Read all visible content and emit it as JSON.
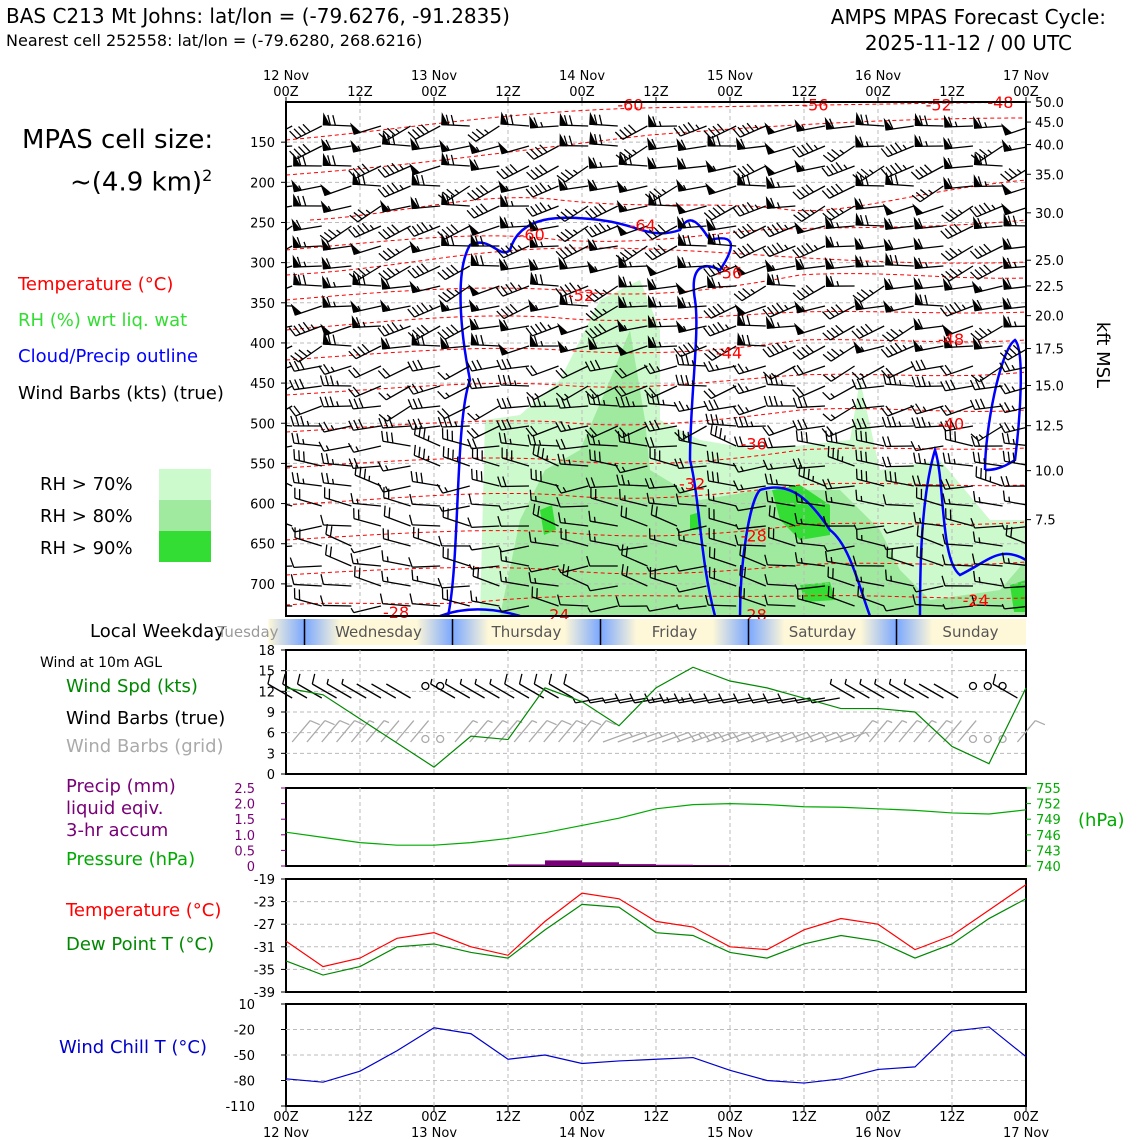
{
  "header": {
    "title": "BAS C213 Mt Johns: lat/lon = (-79.6276, -91.2835)",
    "subtitle": "Nearest cell 252558: lat/lon = (-79.6280, 268.6216)",
    "cycle_title": "AMPS MPAS Forecast Cycle:",
    "cycle_time": "2025-11-12 / 00 UTC"
  },
  "left_panel": {
    "cell_size_label": "MPAS cell size:",
    "cell_size_value": "~(4.9 km)",
    "cell_size_exp": "2",
    "legend": {
      "temperature": "Temperature (°C)",
      "rh": "RH (%) wrt liq. wat",
      "cloud": "Cloud/Precip outline",
      "wind": "Wind Barbs (kts) (true)"
    },
    "rh_levels": [
      "RH > 70%",
      "RH > 80%",
      "RH > 90%"
    ],
    "local_weekday": "Local Weekday",
    "wind_10m": "Wind at 10m AGL",
    "wind_spd": "Wind Spd (kts)",
    "wind_barbs_true": "Wind Barbs (true)",
    "wind_barbs_grid": "Wind Barbs (grid)",
    "precip_1": "Precip (mm)",
    "precip_2": "liquid eqiv.",
    "precip_3": "3-hr accum",
    "pressure": "Pressure (hPa)",
    "temperature": "Temperature (°C)",
    "dewpoint": "Dew Point T (°C)",
    "windchill": "Wind Chill T (°C)"
  },
  "colors": {
    "temp": "#ff0000",
    "rh": "#33dd33",
    "cloud": "#0000ff",
    "wind": "#000000",
    "rh70": "#ccfacc",
    "rh80": "#a0eaa0",
    "rh90": "#33dd33",
    "precip": "#770077",
    "pressure": "#00aa00",
    "dew": "#008800",
    "grid_barb": "#aaaaaa",
    "windchill": "#0000cc"
  },
  "time_axis": {
    "top_labels": [
      {
        "l1": "12 Nov",
        "l2": "00Z"
      },
      {
        "l1": "",
        "l2": "12Z"
      },
      {
        "l1": "13 Nov",
        "l2": "00Z"
      },
      {
        "l1": "",
        "l2": "12Z"
      },
      {
        "l1": "14 Nov",
        "l2": "00Z"
      },
      {
        "l1": "",
        "l2": "12Z"
      },
      {
        "l1": "15 Nov",
        "l2": "00Z"
      },
      {
        "l1": "",
        "l2": "12Z"
      },
      {
        "l1": "16 Nov",
        "l2": "00Z"
      },
      {
        "l1": "",
        "l2": "12Z"
      },
      {
        "l1": "17 Nov",
        "l2": "00Z"
      }
    ],
    "bottom_labels": [
      {
        "l1": "00Z",
        "l2": "12 Nov"
      },
      {
        "l1": "12Z",
        "l2": ""
      },
      {
        "l1": "00Z",
        "l2": "13 Nov"
      },
      {
        "l1": "12Z",
        "l2": ""
      },
      {
        "l1": "00Z",
        "l2": "14 Nov"
      },
      {
        "l1": "12Z",
        "l2": ""
      },
      {
        "l1": "00Z",
        "l2": "15 Nov"
      },
      {
        "l1": "12Z",
        "l2": ""
      },
      {
        "l1": "00Z",
        "l2": "16 Nov"
      },
      {
        "l1": "12Z",
        "l2": ""
      },
      {
        "l1": "00Z",
        "l2": "17 Nov"
      }
    ],
    "weekdays": [
      "Tuesday",
      "Wednesday",
      "Thursday",
      "Friday",
      "Saturday",
      "Sunday"
    ]
  },
  "chart_data": [
    {
      "type": "heatmap",
      "name": "cross-section",
      "yticks": [
        150,
        200,
        250,
        300,
        350,
        400,
        450,
        500,
        550,
        600,
        650,
        700
      ],
      "ylim": [
        740,
        100
      ],
      "right_label": "kft MSL",
      "right_ticks": [
        {
          "p": 100,
          "label": "50.0"
        },
        {
          "p": 125,
          "label": "45.0"
        },
        {
          "p": 153,
          "label": "40.0"
        },
        {
          "p": 190,
          "label": "35.0"
        },
        {
          "p": 238,
          "label": "30.0"
        },
        {
          "p": 297,
          "label": "25.0"
        },
        {
          "p": 329,
          "label": "22.5"
        },
        {
          "p": 366,
          "label": "20.0"
        },
        {
          "p": 407,
          "label": "17.5"
        },
        {
          "p": 453,
          "label": "15.0"
        },
        {
          "p": 503,
          "label": "12.5"
        },
        {
          "p": 559,
          "label": "10.0"
        },
        {
          "p": 620,
          "label": "7.5"
        }
      ],
      "temp_labels": [
        {
          "t": 28,
          "p": 103,
          "label": "-60"
        },
        {
          "t": 43,
          "p": 103,
          "label": "-56"
        },
        {
          "t": 53,
          "p": 103,
          "label": "-52"
        },
        {
          "t": 58,
          "p": 100,
          "label": "-48"
        },
        {
          "t": 20,
          "p": 265,
          "label": "-60"
        },
        {
          "t": 29,
          "p": 253,
          "label": "-64"
        },
        {
          "t": 36,
          "p": 312,
          "label": "-56"
        },
        {
          "t": 24,
          "p": 340,
          "label": "-52"
        },
        {
          "t": 36,
          "p": 412,
          "label": "-44"
        },
        {
          "t": 54,
          "p": 395,
          "label": "-48"
        },
        {
          "t": 54,
          "p": 500,
          "label": "-40"
        },
        {
          "t": 38,
          "p": 525,
          "label": "-36"
        },
        {
          "t": 33,
          "p": 575,
          "label": "-32"
        },
        {
          "t": 38,
          "p": 640,
          "label": "-28"
        },
        {
          "t": 9,
          "p": 735,
          "label": "-28"
        },
        {
          "t": 22,
          "p": 745,
          "label": "-24"
        },
        {
          "t": 38,
          "p": 750,
          "label": "-28"
        },
        {
          "t": 56,
          "p": 720,
          "label": "-24"
        }
      ]
    },
    {
      "type": "line",
      "name": "wind-speed",
      "ylim": [
        0,
        18
      ],
      "yticks": [
        0,
        3,
        6,
        9,
        12,
        15,
        18
      ],
      "x": [
        0,
        3,
        6,
        9,
        12,
        15,
        18,
        21,
        24,
        27,
        30,
        33,
        36,
        39,
        42,
        45,
        48,
        51,
        54,
        57,
        60
      ],
      "series": [
        {
          "values": [
            12.5,
            11.5,
            8,
            4.5,
            1,
            5.5,
            5,
            12.5,
            10.5,
            7,
            12.5,
            15.5,
            13.5,
            12.5,
            11,
            9.5,
            9.5,
            9,
            4,
            1.5,
            12.5
          ]
        }
      ]
    },
    {
      "type": "line",
      "name": "precip-pressure",
      "precip_ylim": [
        0,
        2.5
      ],
      "precip_yticks": [
        "0",
        "0.5",
        "1.0",
        "1.5",
        "2.0",
        "2.5"
      ],
      "pressure_ylim": [
        740,
        755
      ],
      "pressure_yticks": [
        740,
        743,
        746,
        749,
        752,
        755
      ],
      "right_label": "(hPa)",
      "x": [
        0,
        3,
        6,
        9,
        12,
        15,
        18,
        21,
        24,
        27,
        30,
        33,
        36,
        39,
        42,
        45,
        48,
        51,
        54,
        57,
        60
      ],
      "series": [
        {
          "name": "Pressure (hPa)",
          "values": [
            746.5,
            745.5,
            744.5,
            744,
            744,
            744.5,
            745.3,
            746.4,
            747.8,
            749.2,
            751,
            751.8,
            752,
            751.8,
            751.4,
            751.3,
            751,
            750.7,
            750.2,
            750,
            750.8
          ]
        },
        {
          "name": "Precip (mm)",
          "type": "bar",
          "values": [
            0,
            0,
            0,
            0,
            0,
            0,
            0.05,
            0.18,
            0.12,
            0.06,
            0.04,
            0.02,
            0,
            0,
            0,
            0,
            0,
            0,
            0,
            0,
            0
          ]
        }
      ]
    },
    {
      "type": "line",
      "name": "temperature-dewpoint",
      "ylim": [
        -39,
        -19
      ],
      "yticks": [
        -39,
        -35,
        -31,
        -27,
        -23,
        -19
      ],
      "x": [
        0,
        3,
        6,
        9,
        12,
        15,
        18,
        21,
        24,
        27,
        30,
        33,
        36,
        39,
        42,
        45,
        48,
        51,
        54,
        57,
        60
      ],
      "series": [
        {
          "name": "Temperature (°C)",
          "values": [
            -30,
            -34.5,
            -33,
            -29.5,
            -28.5,
            -31,
            -32.5,
            -26.5,
            -21.5,
            -22.5,
            -26.5,
            -27.5,
            -31,
            -31.5,
            -28,
            -26,
            -27,
            -31.5,
            -29,
            -24.5,
            -20
          ]
        },
        {
          "name": "Dew Point T (°C)",
          "values": [
            -33.5,
            -36,
            -34.5,
            -31,
            -30.5,
            -32,
            -33,
            -28,
            -23.5,
            -24,
            -28.5,
            -29,
            -32,
            -33,
            -30.5,
            -29,
            -30,
            -33,
            -30.5,
            -26,
            -22.5
          ]
        }
      ]
    },
    {
      "type": "line",
      "name": "wind-chill",
      "ylim": [
        -110,
        10
      ],
      "yticks": [
        -110,
        -80,
        -50,
        -20,
        10
      ],
      "x": [
        0,
        3,
        6,
        9,
        12,
        15,
        18,
        21,
        24,
        27,
        30,
        33,
        36,
        39,
        42,
        45,
        48,
        51,
        54,
        57,
        60
      ],
      "series": [
        {
          "name": "Wind Chill T (°C)",
          "values": [
            -78,
            -82,
            -69,
            -45,
            -18,
            -25,
            -55,
            -50,
            -60,
            -57,
            -55,
            -53,
            -68,
            -80,
            -83,
            -78,
            -67,
            -64,
            -22,
            -17,
            -52
          ]
        }
      ]
    }
  ]
}
